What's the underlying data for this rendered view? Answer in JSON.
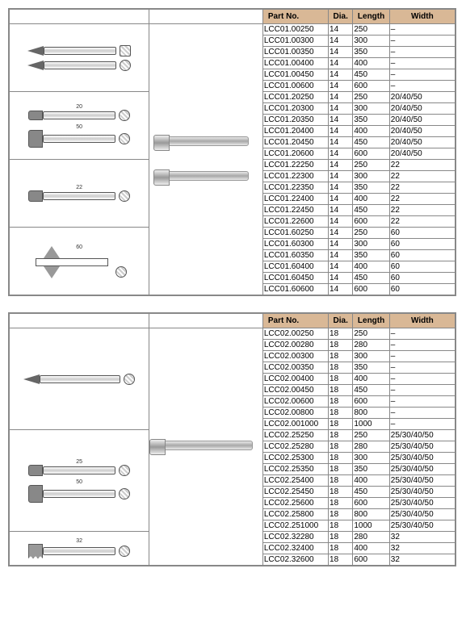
{
  "tables": [
    {
      "headers": {
        "part": "Part No.",
        "dia": "Dia.",
        "length": "Length",
        "width": "Width"
      },
      "groups": [
        {
          "image": "point-hex-cross",
          "rows": [
            {
              "part": "LCC01.00250",
              "dia": "14",
              "length": "250",
              "width": "–"
            },
            {
              "part": "LCC01.00300",
              "dia": "14",
              "length": "300",
              "width": "–"
            },
            {
              "part": "LCC01.00350",
              "dia": "14",
              "length": "350",
              "width": "–"
            },
            {
              "part": "LCC01.00400",
              "dia": "14",
              "length": "400",
              "width": "–"
            },
            {
              "part": "LCC01.00450",
              "dia": "14",
              "length": "450",
              "width": "–"
            },
            {
              "part": "LCC01.00600",
              "dia": "14",
              "length": "600",
              "width": "–"
            }
          ]
        },
        {
          "image": "flat-chisel-narrow",
          "rows": [
            {
              "part": "LCC01.20250",
              "dia": "14",
              "length": "250",
              "width": "20/40/50"
            },
            {
              "part": "LCC01.20300",
              "dia": "14",
              "length": "300",
              "width": "20/40/50"
            },
            {
              "part": "LCC01.20350",
              "dia": "14",
              "length": "350",
              "width": "20/40/50"
            },
            {
              "part": "LCC01.20400",
              "dia": "14",
              "length": "400",
              "width": "20/40/50"
            },
            {
              "part": "LCC01.20450",
              "dia": "14",
              "length": "450",
              "width": "20/40/50"
            },
            {
              "part": "LCC01.20600",
              "dia": "14",
              "length": "600",
              "width": "20/40/50"
            }
          ]
        },
        {
          "image": "flat-chisel-22",
          "rows": [
            {
              "part": "LCC01.22250",
              "dia": "14",
              "length": "250",
              "width": "22"
            },
            {
              "part": "LCC01.22300",
              "dia": "14",
              "length": "300",
              "width": "22"
            },
            {
              "part": "LCC01.22350",
              "dia": "14",
              "length": "350",
              "width": "22"
            },
            {
              "part": "LCC01.22400",
              "dia": "14",
              "length": "400",
              "width": "22"
            },
            {
              "part": "LCC01.22450",
              "dia": "14",
              "length": "450",
              "width": "22"
            },
            {
              "part": "LCC01.22600",
              "dia": "14",
              "length": "600",
              "width": "22"
            }
          ]
        },
        {
          "image": "wing-chisel-60",
          "rows": [
            {
              "part": "LCC01.60250",
              "dia": "14",
              "length": "250",
              "width": "60"
            },
            {
              "part": "LCC01.60300",
              "dia": "14",
              "length": "300",
              "width": "60"
            },
            {
              "part": "LCC01.60350",
              "dia": "14",
              "length": "350",
              "width": "60"
            },
            {
              "part": "LCC01.60400",
              "dia": "14",
              "length": "400",
              "width": "60"
            },
            {
              "part": "LCC01.60450",
              "dia": "14",
              "length": "450",
              "width": "60"
            },
            {
              "part": "LCC01.60600",
              "dia": "14",
              "length": "600",
              "width": "60"
            }
          ]
        }
      ],
      "photoSpans": [
        {
          "start": 0,
          "span": 4,
          "kind": "sds"
        }
      ]
    },
    {
      "headers": {
        "part": "Part No.",
        "dia": "Dia.",
        "length": "Length",
        "width": "Width"
      },
      "groups": [
        {
          "image": "point-round-cross",
          "rows": [
            {
              "part": "LCC02.00250",
              "dia": "18",
              "length": "250",
              "width": "–"
            },
            {
              "part": "LCC02.00280",
              "dia": "18",
              "length": "280",
              "width": "–"
            },
            {
              "part": "LCC02.00300",
              "dia": "18",
              "length": "300",
              "width": "–"
            },
            {
              "part": "LCC02.00350",
              "dia": "18",
              "length": "350",
              "width": "–"
            },
            {
              "part": "LCC02.00400",
              "dia": "18",
              "length": "400",
              "width": "–"
            },
            {
              "part": "LCC02.00450",
              "dia": "18",
              "length": "450",
              "width": "–"
            },
            {
              "part": "LCC02.00600",
              "dia": "18",
              "length": "600",
              "width": "–"
            },
            {
              "part": "LCC02.00800",
              "dia": "18",
              "length": "800",
              "width": "–"
            },
            {
              "part": "LCC02.001000",
              "dia": "18",
              "length": "1000",
              "width": "–"
            }
          ]
        },
        {
          "image": "flat-chisel-wide",
          "rows": [
            {
              "part": "LCC02.25250",
              "dia": "18",
              "length": "250",
              "width": "25/30/40/50"
            },
            {
              "part": "LCC02.25280",
              "dia": "18",
              "length": "280",
              "width": "25/30/40/50"
            },
            {
              "part": "LCC02.25300",
              "dia": "18",
              "length": "300",
              "width": "25/30/40/50"
            },
            {
              "part": "LCC02.25350",
              "dia": "18",
              "length": "350",
              "width": "25/30/40/50"
            },
            {
              "part": "LCC02.25400",
              "dia": "18",
              "length": "400",
              "width": "25/30/40/50"
            },
            {
              "part": "LCC02.25450",
              "dia": "18",
              "length": "450",
              "width": "25/30/40/50"
            },
            {
              "part": "LCC02.25600",
              "dia": "18",
              "length": "600",
              "width": "25/30/40/50"
            },
            {
              "part": "LCC02.25800",
              "dia": "18",
              "length": "800",
              "width": "25/30/40/50"
            },
            {
              "part": "LCC02.251000",
              "dia": "18",
              "length": "1000",
              "width": "25/30/40/50"
            }
          ]
        },
        {
          "image": "serrated-chisel",
          "rows": [
            {
              "part": "LCC02.32280",
              "dia": "18",
              "length": "280",
              "width": "32"
            },
            {
              "part": "LCC02.32400",
              "dia": "18",
              "length": "400",
              "width": "32"
            },
            {
              "part": "LCC02.32600",
              "dia": "18",
              "length": "600",
              "width": "32"
            }
          ]
        }
      ],
      "photoSpans": [
        {
          "start": 0,
          "span": 3,
          "kind": "sds-long"
        }
      ]
    }
  ],
  "colors": {
    "header_bg": "#d9b896",
    "border": "#888888"
  }
}
